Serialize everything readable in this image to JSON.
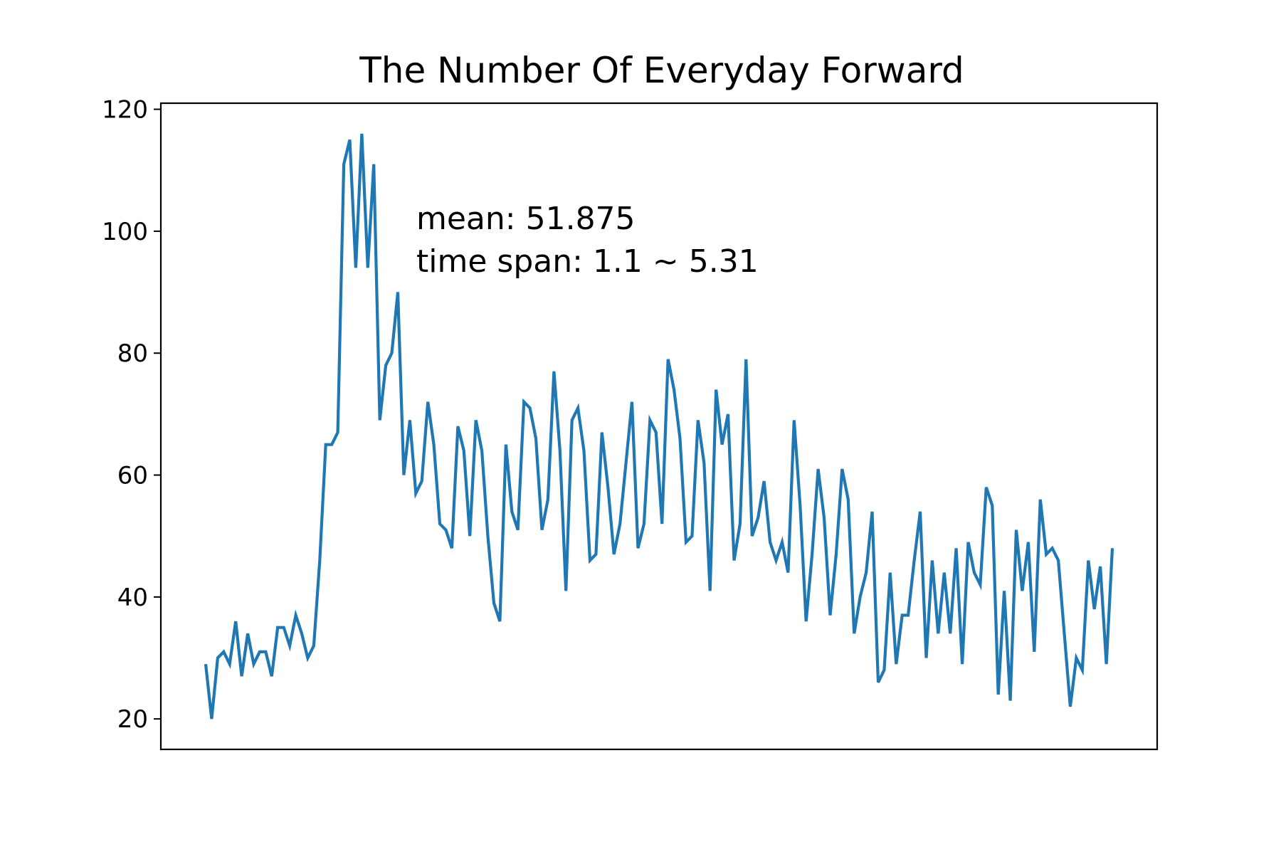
{
  "chart_data": {
    "type": "line",
    "title": "The Number Of Everyday Forward",
    "xlabel": "",
    "ylabel": "",
    "ylim": [
      15,
      121
    ],
    "yticks": [
      20,
      40,
      60,
      80,
      100,
      120
    ],
    "x_ticks_shown": false,
    "grid": false,
    "legend": "none",
    "color": "#1f77b4",
    "annotations": [
      "mean: 51.875",
      "time span: 1.1 ~ 5.31"
    ],
    "series": [
      {
        "values": [
          29,
          20,
          30,
          31,
          29,
          36,
          27,
          34,
          29,
          31,
          31,
          27,
          35,
          35,
          32,
          37,
          34,
          30,
          32,
          46,
          65,
          65,
          67,
          111,
          115,
          94,
          116,
          94,
          111,
          69,
          78,
          80,
          90,
          60,
          69,
          57,
          59,
          72,
          65,
          52,
          51,
          48,
          68,
          64,
          50,
          69,
          64,
          50,
          39,
          36,
          65,
          54,
          51,
          72,
          71,
          66,
          51,
          56,
          77,
          64,
          41,
          69,
          71,
          64,
          46,
          47,
          67,
          58,
          47,
          52,
          62,
          72,
          48,
          52,
          69,
          67,
          52,
          79,
          74,
          66,
          49,
          50,
          69,
          62,
          41,
          74,
          65,
          70,
          46,
          52,
          79,
          50,
          53,
          59,
          49,
          46,
          49,
          44,
          69,
          55,
          36,
          47,
          61,
          53,
          37,
          47,
          61,
          56,
          34,
          40,
          44,
          54,
          26,
          28,
          44,
          29,
          37,
          37,
          46,
          54,
          30,
          46,
          34,
          44,
          34,
          48,
          29,
          49,
          44,
          42,
          58,
          55,
          24,
          41,
          23,
          51,
          41,
          49,
          31,
          56,
          47,
          48,
          46,
          34,
          22,
          30,
          28,
          46,
          38,
          45,
          29,
          48
        ]
      }
    ]
  }
}
